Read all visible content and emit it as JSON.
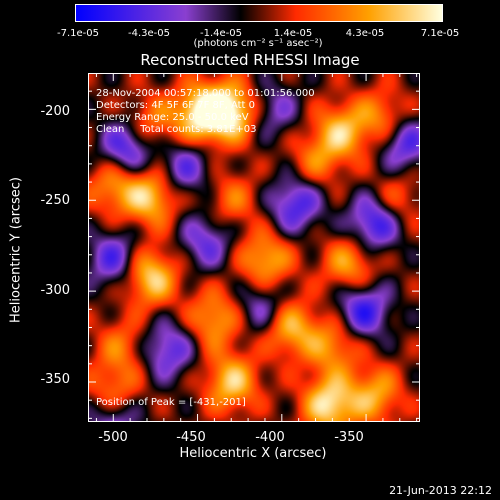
{
  "colorbar": {
    "ticks": [
      "-7.1e-05",
      "-4.3e-05",
      "-1.4e-05",
      "1.4e-05",
      "4.3e-05",
      "7.1e-05"
    ],
    "unit_label": "(photons cm⁻² s⁻¹ asec⁻²)"
  },
  "chart_data": {
    "type": "heatmap",
    "title": "Reconstructed RHESSI Image",
    "xlabel": "Heliocentric X (arcsec)",
    "ylabel": "Heliocentric Y (arcsec)",
    "xlim": [
      -515,
      -318
    ],
    "ylim": [
      -372,
      -180
    ],
    "x_ticks": [
      "-500",
      "-450",
      "-400",
      "-350"
    ],
    "y_ticks": [
      "-200",
      "-250",
      "-300",
      "-350"
    ],
    "colorbar_range": [
      -7.1e-05,
      7.1e-05
    ],
    "colormap": [
      "#0000ff",
      "#8a3fd0",
      "#000000",
      "#ff2a00",
      "#ffa000",
      "#ffffe0"
    ],
    "info_lines": [
      "28-Nov-2004 00:57:18.000 to 01:01:56.000",
      "Detectors: 4F 5F 6F 7F 8F, Att 0",
      "Energy Range: 25.0 - 50.0 keV",
      "Clean     Total counts: 3.81E+03"
    ],
    "annotation": "Position of Peak = [-431,-201]",
    "peak": [
      -431,
      -201
    ],
    "blobs": [
      {
        "x": -448,
        "y": -202,
        "amp": 6.8e-05
      },
      {
        "x": -431,
        "y": -201,
        "amp": 7.1e-05
      },
      {
        "x": -478,
        "y": -208,
        "amp": 3.5e-05
      },
      {
        "x": -365,
        "y": -212,
        "amp": 5e-05
      },
      {
        "x": -340,
        "y": -205,
        "amp": 4e-05
      },
      {
        "x": -478,
        "y": -248,
        "amp": 5.5e-05
      },
      {
        "x": -500,
        "y": -242,
        "amp": 4e-05
      },
      {
        "x": -430,
        "y": -250,
        "amp": 3e-05
      },
      {
        "x": -380,
        "y": -228,
        "amp": 3e-05
      },
      {
        "x": -478,
        "y": -292,
        "amp": 6e-05
      },
      {
        "x": -410,
        "y": -283,
        "amp": 5e-05
      },
      {
        "x": -360,
        "y": -285,
        "amp": 4.5e-05
      },
      {
        "x": -440,
        "y": -315,
        "amp": 4.5e-05
      },
      {
        "x": -395,
        "y": -320,
        "amp": 5e-05
      },
      {
        "x": -370,
        "y": -330,
        "amp": 4e-05
      },
      {
        "x": -495,
        "y": -330,
        "amp": 3e-05
      },
      {
        "x": -430,
        "y": -350,
        "amp": 5.5e-05
      },
      {
        "x": -372,
        "y": -362,
        "amp": 6.5e-05
      },
      {
        "x": -345,
        "y": -357,
        "amp": 4.5e-05
      },
      {
        "x": -500,
        "y": -355,
        "amp": 3.5e-05
      },
      {
        "x": -333,
        "y": -250,
        "amp": 3e-05
      },
      {
        "x": -492,
        "y": -221,
        "amp": -5.5e-05
      },
      {
        "x": -458,
        "y": -232,
        "amp": -4e-05
      },
      {
        "x": -445,
        "y": -272,
        "amp": -4e-05
      },
      {
        "x": -392,
        "y": -252,
        "amp": -5e-05
      },
      {
        "x": -345,
        "y": -262,
        "amp": -6e-05
      },
      {
        "x": -328,
        "y": -218,
        "amp": -5e-05
      },
      {
        "x": -500,
        "y": -282,
        "amp": -4.5e-05
      },
      {
        "x": -468,
        "y": -332,
        "amp": -4.5e-05
      },
      {
        "x": -352,
        "y": -310,
        "amp": -5.5e-05
      },
      {
        "x": -500,
        "y": -372,
        "amp": -4e-05
      },
      {
        "x": -412,
        "y": -308,
        "amp": -3.5e-05
      },
      {
        "x": -405,
        "y": -200,
        "amp": -3e-05
      }
    ]
  },
  "footer": {
    "date": "21-Jun-2013 22:12"
  }
}
